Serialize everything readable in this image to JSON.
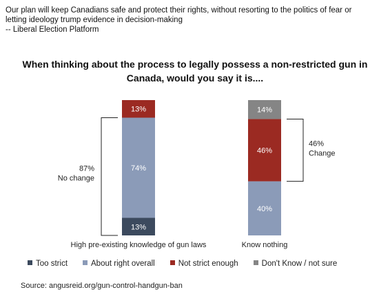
{
  "quote": {
    "line1": "Our plan will keep Canadians safe and protect their rights, without resorting to the politics of fear or",
    "line2": "letting ideology trump evidence in decision-making",
    "line3": "-- Liberal Election Platform"
  },
  "chart_data": {
    "type": "bar",
    "stacked": true,
    "title_line1": "When thinking about the process to legally possess a non-restricted gun in",
    "title_line2": "Canada, would you say it is....",
    "categories": [
      "High pre-existing knowledge of gun laws",
      "Know nothing"
    ],
    "series": [
      {
        "name": "Too strict",
        "color": "#3c4a5e",
        "values": [
          13,
          0
        ]
      },
      {
        "name": "About right overall",
        "color": "#8b9bb8",
        "values": [
          74,
          40
        ]
      },
      {
        "name": "Not strict enough",
        "color": "#9b2a22",
        "values": [
          13,
          46
        ]
      },
      {
        "name": "Don't Know / not sure",
        "color": "#858585",
        "values": [
          0,
          14
        ]
      }
    ],
    "data_labels": [
      [
        "13%",
        "74%",
        "13%",
        ""
      ],
      [
        "",
        "40%",
        "46%",
        "14%"
      ]
    ],
    "ylim": [
      0,
      100
    ],
    "legend_position": "bottom",
    "grid": false,
    "annotations": [
      {
        "line1": "87%",
        "line2": "No change"
      },
      {
        "line1": "46%",
        "line2": "Change"
      }
    ]
  },
  "source": "Source:  angusreid.org/gun-control-handgun-ban"
}
